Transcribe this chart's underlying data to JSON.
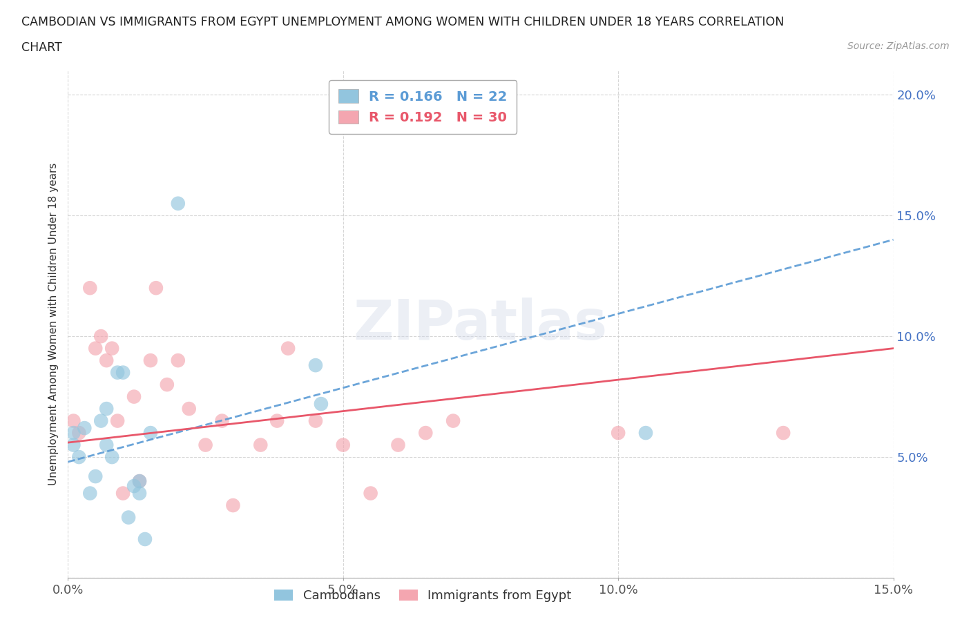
{
  "title_line1": "CAMBODIAN VS IMMIGRANTS FROM EGYPT UNEMPLOYMENT AMONG WOMEN WITH CHILDREN UNDER 18 YEARS CORRELATION",
  "title_line2": "CHART",
  "source": "Source: ZipAtlas.com",
  "ylabel": "Unemployment Among Women with Children Under 18 years",
  "xlim": [
    0.0,
    0.15
  ],
  "ylim": [
    0.0,
    0.21
  ],
  "xticks": [
    0.0,
    0.05,
    0.1,
    0.15
  ],
  "yticks": [
    0.0,
    0.05,
    0.1,
    0.15,
    0.2
  ],
  "xtick_labels": [
    "0.0%",
    "5.0%",
    "10.0%",
    "15.0%"
  ],
  "ytick_labels": [
    "",
    "5.0%",
    "10.0%",
    "15.0%",
    "20.0%"
  ],
  "cambodian_color": "#92C5DE",
  "egypt_color": "#F4A6B0",
  "cambodian_line_color": "#5B9BD5",
  "egypt_line_color": "#E8576A",
  "R_cambodian": 0.166,
  "N_cambodian": 22,
  "R_egypt": 0.192,
  "N_egypt": 30,
  "cambodian_x": [
    0.001,
    0.001,
    0.002,
    0.003,
    0.004,
    0.005,
    0.006,
    0.007,
    0.007,
    0.008,
    0.009,
    0.01,
    0.011,
    0.012,
    0.013,
    0.013,
    0.014,
    0.015,
    0.02,
    0.045,
    0.046,
    0.105
  ],
  "cambodian_y": [
    0.055,
    0.06,
    0.05,
    0.062,
    0.035,
    0.042,
    0.065,
    0.055,
    0.07,
    0.05,
    0.085,
    0.085,
    0.025,
    0.038,
    0.04,
    0.035,
    0.016,
    0.06,
    0.155,
    0.088,
    0.072,
    0.06
  ],
  "egypt_x": [
    0.001,
    0.002,
    0.004,
    0.005,
    0.006,
    0.007,
    0.008,
    0.009,
    0.01,
    0.012,
    0.013,
    0.015,
    0.016,
    0.018,
    0.02,
    0.022,
    0.025,
    0.028,
    0.03,
    0.035,
    0.038,
    0.04,
    0.045,
    0.05,
    0.055,
    0.06,
    0.065,
    0.07,
    0.1,
    0.13
  ],
  "egypt_y": [
    0.065,
    0.06,
    0.12,
    0.095,
    0.1,
    0.09,
    0.095,
    0.065,
    0.035,
    0.075,
    0.04,
    0.09,
    0.12,
    0.08,
    0.09,
    0.07,
    0.055,
    0.065,
    0.03,
    0.055,
    0.065,
    0.095,
    0.065,
    0.055,
    0.035,
    0.055,
    0.06,
    0.065,
    0.06,
    0.06
  ],
  "cambodian_line_x0": 0.0,
  "cambodian_line_y0": 0.048,
  "cambodian_line_x1": 0.15,
  "cambodian_line_y1": 0.14,
  "egypt_line_x0": 0.0,
  "egypt_line_y0": 0.056,
  "egypt_line_x1": 0.15,
  "egypt_line_y1": 0.095,
  "background_color": "#FFFFFF",
  "grid_color": "#CCCCCC",
  "watermark": "ZIPatlas"
}
